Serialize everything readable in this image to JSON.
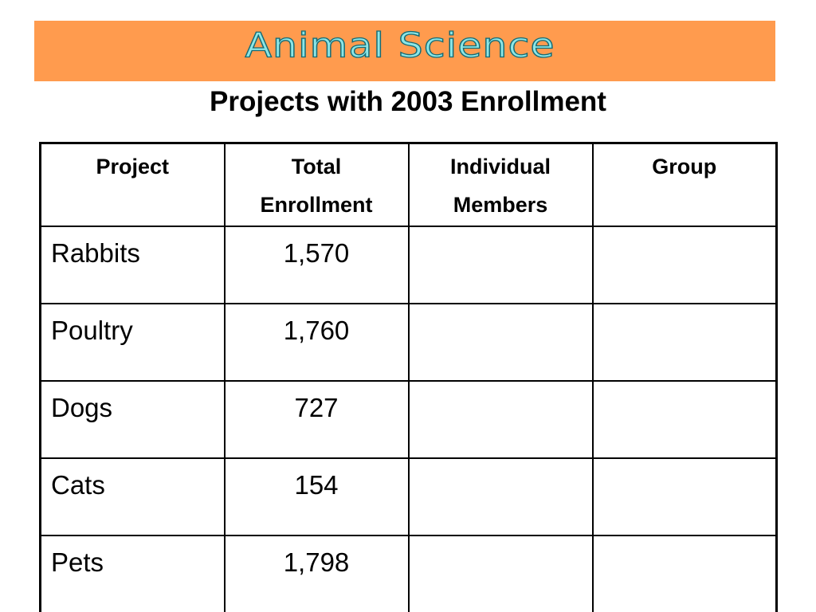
{
  "banner": {
    "title": "Animal Science"
  },
  "subtitle": "Projects with 2003 Enrollment",
  "table": {
    "headers": [
      {
        "line1": "Project",
        "line2": ""
      },
      {
        "line1": "Total",
        "line2": "Enrollment"
      },
      {
        "line1": "Individual",
        "line2": "Members"
      },
      {
        "line1": "Group",
        "line2": ""
      }
    ],
    "rows": [
      {
        "project": "Rabbits",
        "total": "1,570",
        "individual": "",
        "group": ""
      },
      {
        "project": "Poultry",
        "total": "1,760",
        "individual": "",
        "group": ""
      },
      {
        "project": "Dogs",
        "total": "727",
        "individual": "",
        "group": ""
      },
      {
        "project": "Cats",
        "total": "154",
        "individual": "",
        "group": ""
      },
      {
        "project": "Pets",
        "total": "1,798",
        "individual": "",
        "group": ""
      }
    ]
  },
  "colors": {
    "banner_background": "#ff9b4e",
    "banner_text_fill": "#8ce6e6",
    "banner_text_outline": "#156b75",
    "text": "#000000",
    "table_border": "#000000"
  }
}
